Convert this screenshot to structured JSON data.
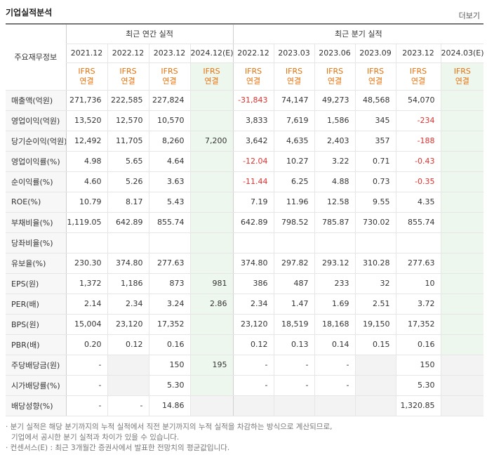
{
  "title": "기업실적분석",
  "more_label": "더보기",
  "header": {
    "label": "주요재무정보",
    "annual_group": "최근 연간 실적",
    "quarter_group": "최근 분기 실적",
    "periods": [
      "2021.12",
      "2022.12",
      "2023.12",
      "2024.12(E)",
      "2022.12",
      "2023.03",
      "2023.06",
      "2023.09",
      "2023.12",
      "2024.03(E)"
    ],
    "ifrs_top": "IFRS",
    "ifrs_bottom": "연결"
  },
  "rows": [
    {
      "label": "매출액(억원)",
      "values": [
        "271,736",
        "222,585",
        "227,824",
        "",
        "-31,843",
        "74,147",
        "49,273",
        "48,568",
        "54,070",
        ""
      ]
    },
    {
      "label": "영업이익(억원)",
      "values": [
        "13,520",
        "12,570",
        "10,570",
        "",
        "3,833",
        "7,619",
        "1,586",
        "345",
        "-234",
        ""
      ]
    },
    {
      "label": "당기순이익(억원)",
      "values": [
        "12,492",
        "11,705",
        "8,260",
        "7,200",
        "3,642",
        "4,635",
        "2,403",
        "357",
        "-188",
        ""
      ]
    },
    {
      "label": "영업이익률(%)",
      "values": [
        "4.98",
        "5.65",
        "4.64",
        "",
        "-12.04",
        "10.27",
        "3.22",
        "0.71",
        "-0.43",
        ""
      ]
    },
    {
      "label": "순이익률(%)",
      "values": [
        "4.60",
        "5.26",
        "3.63",
        "",
        "-11.44",
        "6.25",
        "4.88",
        "0.73",
        "-0.35",
        ""
      ]
    },
    {
      "label": "ROE(%)",
      "values": [
        "10.79",
        "8.17",
        "5.43",
        "",
        "7.19",
        "11.96",
        "12.58",
        "9.55",
        "4.35",
        ""
      ]
    },
    {
      "label": "부채비율(%)",
      "values": [
        "1,119.05",
        "642.89",
        "855.74",
        "",
        "642.89",
        "798.52",
        "785.87",
        "730.02",
        "855.74",
        ""
      ]
    },
    {
      "label": "당좌비율(%)",
      "values": [
        "",
        "",
        "",
        "",
        "",
        "",
        "",
        "",
        "",
        ""
      ]
    },
    {
      "label": "유보율(%)",
      "values": [
        "230.30",
        "374.80",
        "277.63",
        "",
        "374.80",
        "297.82",
        "293.12",
        "310.28",
        "277.63",
        ""
      ]
    },
    {
      "label": "EPS(원)",
      "values": [
        "1,372",
        "1,186",
        "873",
        "981",
        "386",
        "487",
        "233",
        "32",
        "10",
        ""
      ]
    },
    {
      "label": "PER(배)",
      "values": [
        "2.14",
        "2.34",
        "3.24",
        "2.86",
        "2.34",
        "1.47",
        "1.69",
        "2.51",
        "3.72",
        ""
      ]
    },
    {
      "label": "BPS(원)",
      "values": [
        "15,004",
        "23,120",
        "17,352",
        "",
        "23,120",
        "18,519",
        "18,168",
        "19,150",
        "17,352",
        ""
      ]
    },
    {
      "label": "PBR(배)",
      "values": [
        "0.20",
        "0.12",
        "0.16",
        "",
        "0.12",
        "0.13",
        "0.14",
        "0.15",
        "0.16",
        ""
      ]
    },
    {
      "label": "주당배당금(원)",
      "values": [
        "-",
        "",
        "150",
        "195",
        "-",
        "-",
        "-",
        "",
        "150",
        ""
      ]
    },
    {
      "label": "시가배당률(%)",
      "values": [
        "-",
        "",
        "5.30",
        "",
        "-",
        "-",
        "-",
        "",
        "5.30",
        ""
      ]
    },
    {
      "label": "배당성향(%)",
      "values": [
        "-",
        "-",
        "14.86",
        "",
        "",
        "",
        "",
        "",
        "1,320.85",
        ""
      ]
    }
  ],
  "notes": [
    "· 분기 실적은 해당 분기까지의 누적 실적에서 직전 분기까지의 누적 실적을 차감하는 방식으로 계산되므로,",
    "  기업에서 공시한 분기 실적과 차이가 있을 수 있습니다.",
    "· 컨센서스(E) : 최근 3개월간 증권사에서 발표한 전망치의 평균값입니다."
  ]
}
